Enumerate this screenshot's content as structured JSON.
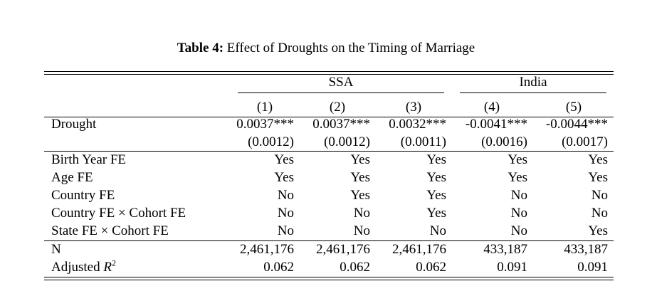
{
  "caption": {
    "label": "Table 4:",
    "title": "Effect of Droughts on the Timing of Marriage"
  },
  "groups": [
    "SSA",
    "India"
  ],
  "column_numbers": [
    "(1)",
    "(2)",
    "(3)",
    "(4)",
    "(5)"
  ],
  "drought": {
    "label": "Drought",
    "coefficients": [
      "0.0037***",
      "0.0037***",
      "0.0032***",
      "-0.0041***",
      "-0.0044***"
    ],
    "std_errors": [
      "(0.0012)",
      "(0.0012)",
      "(0.0011)",
      "(0.0016)",
      "(0.0017)"
    ]
  },
  "fixed_effects": [
    {
      "label": "Birth Year FE",
      "values": [
        "Yes",
        "Yes",
        "Yes",
        "Yes",
        "Yes"
      ]
    },
    {
      "label": "Age FE",
      "values": [
        "Yes",
        "Yes",
        "Yes",
        "Yes",
        "Yes"
      ]
    },
    {
      "label": "Country FE",
      "values": [
        "No",
        "Yes",
        "Yes",
        "No",
        "No"
      ]
    },
    {
      "label": "Country FE × Cohort FE",
      "values": [
        "No",
        "No",
        "Yes",
        "No",
        "No"
      ]
    },
    {
      "label": "State FE × Cohort FE",
      "values": [
        "No",
        "No",
        "No",
        "No",
        "Yes"
      ]
    }
  ],
  "stats": {
    "n_label": "N",
    "n_values": [
      "2,461,176",
      "2,461,176",
      "2,461,176",
      "433,187",
      "433,187"
    ],
    "r2_label_text": "Adjusted ",
    "r2_symbol": "R",
    "r2_exp": "2",
    "r2_values": [
      "0.062",
      "0.062",
      "0.062",
      "0.091",
      "0.091"
    ]
  }
}
